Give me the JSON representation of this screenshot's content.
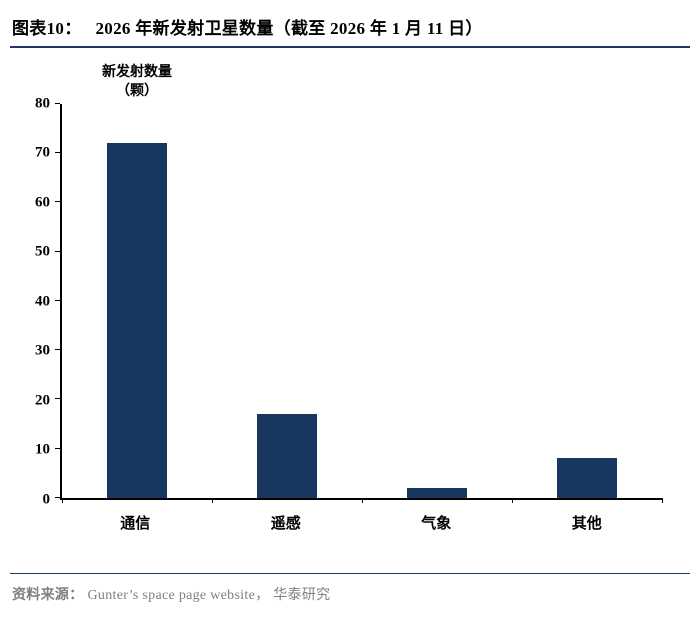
{
  "header": {
    "figure_label": "图表10：",
    "title": "2026 年新发射卫星数量（截至 2026 年 1 月 11 日）"
  },
  "chart_data": {
    "type": "bar",
    "title": "2026 年新发射卫星数量（截至 2026 年 1 月 11 日）",
    "categories": [
      "通信",
      "遥感",
      "气象",
      "其他"
    ],
    "values": [
      72,
      17,
      2,
      8
    ],
    "xlabel": "",
    "ylabel_line1": "新发射数量",
    "ylabel_line2": "（颗）",
    "ylim": [
      0,
      80
    ],
    "ytick_step": 10,
    "yticks": [
      0,
      10,
      20,
      30,
      40,
      50,
      60,
      70,
      80
    ],
    "bar_color": "#17375E",
    "grid": false,
    "legend": "none"
  },
  "footer": {
    "source_label": "资料来源：",
    "source_text": "Gunter’s space page website， 华泰研究"
  },
  "colors": {
    "accent": "#17375E",
    "divider": "#1F3864",
    "source_text": "#808080"
  }
}
